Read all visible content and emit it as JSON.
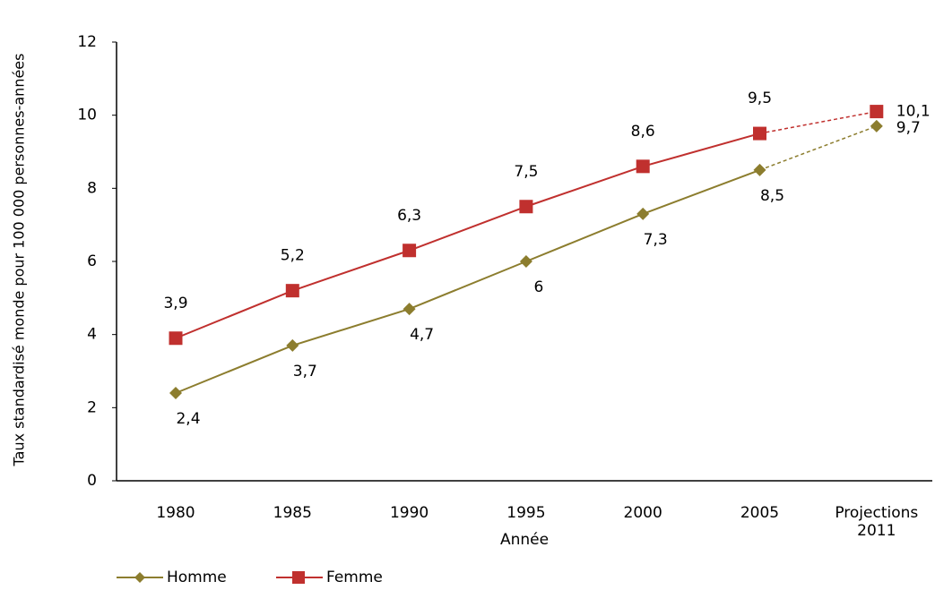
{
  "chart_data": {
    "type": "line",
    "y_label": "Taux standardisé monde pour 100 000 personnes-années",
    "x_label": "Année",
    "categories": [
      "1980",
      "1985",
      "1990",
      "1995",
      "2000",
      "2005",
      "Projections 2011"
    ],
    "series": [
      {
        "name": "Homme",
        "color": "#8c7d2e",
        "marker": "diamond",
        "label_position": "below",
        "values": [
          2.4,
          3.7,
          4.7,
          6,
          7.3,
          8.5,
          9.7
        ],
        "value_labels": [
          "2,4",
          "3,7",
          "4,7",
          "6",
          "7,3",
          "8,5",
          "9,7"
        ]
      },
      {
        "name": "Femme",
        "color": "#c0302e",
        "marker": "square",
        "label_position": "above",
        "values": [
          3.9,
          5.2,
          6.3,
          7.5,
          8.6,
          9.5,
          10.1
        ],
        "value_labels": [
          "3,9",
          "5,2",
          "6,3",
          "7,5",
          "8,6",
          "9,5",
          "10,1"
        ]
      }
    ],
    "dashed_last_segment": true,
    "ylim": [
      0,
      12
    ],
    "yticks": [
      0,
      2,
      4,
      6,
      8,
      10,
      12
    ],
    "legend": "bottom-left"
  }
}
